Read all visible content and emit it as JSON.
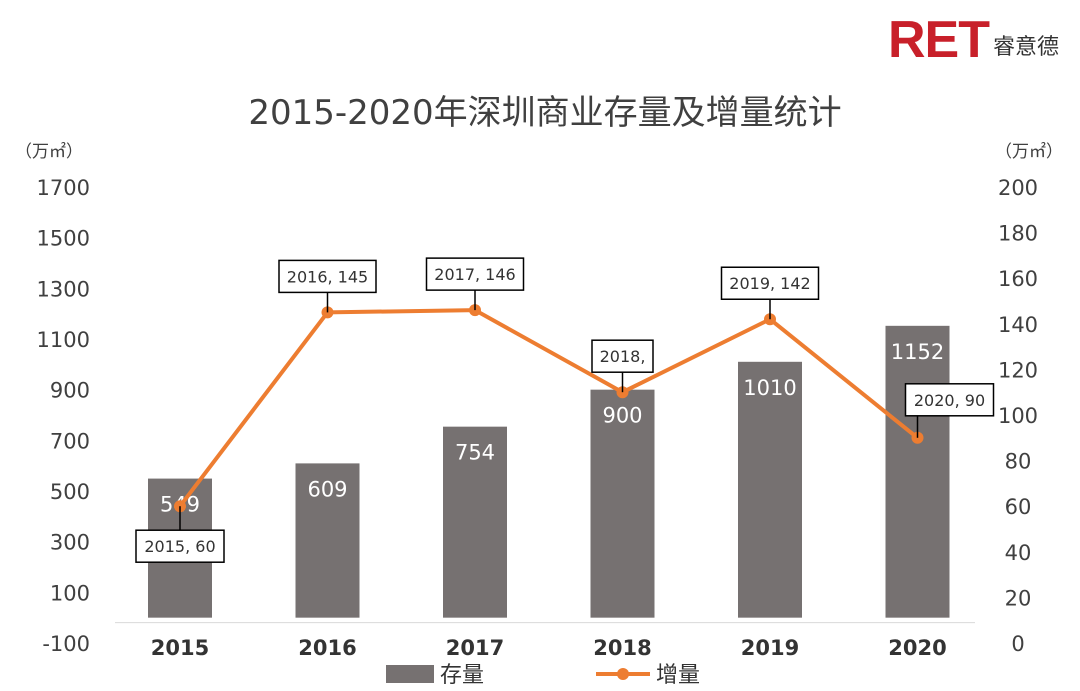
{
  "logo": {
    "mark": "RET",
    "name": "睿意德"
  },
  "chart_data": {
    "type": "bar",
    "title": "2015-2020年深圳商业存量及增量统计",
    "categories": [
      "2015",
      "2016",
      "2017",
      "2018",
      "2019",
      "2020"
    ],
    "ylabel_left": "（万㎡）",
    "ylabel_right": "（万㎡）",
    "ylim_left": [
      -100,
      1700
    ],
    "yticks_left": [
      -100,
      100,
      300,
      500,
      700,
      900,
      1100,
      1300,
      1500,
      1700
    ],
    "ylim_right": [
      0,
      200
    ],
    "yticks_right": [
      0,
      20,
      40,
      60,
      80,
      100,
      120,
      140,
      160,
      180,
      200
    ],
    "grid": false,
    "legend_position": "bottom",
    "series": [
      {
        "name": "存量",
        "type": "bar",
        "axis": "left",
        "color": "#767171",
        "values": [
          549,
          609,
          754,
          900,
          1010,
          1152
        ],
        "labels": [
          "549",
          "609",
          "754",
          "900",
          "1010",
          "1152"
        ]
      },
      {
        "name": "增量",
        "type": "line",
        "axis": "right",
        "color": "#ed7d31",
        "values": [
          60,
          145,
          146,
          110,
          142,
          90
        ],
        "labels": [
          "2015, 60",
          "2016, 145",
          "2017, 146",
          "2018,",
          "2019, 142",
          "2020, 90"
        ]
      }
    ]
  }
}
